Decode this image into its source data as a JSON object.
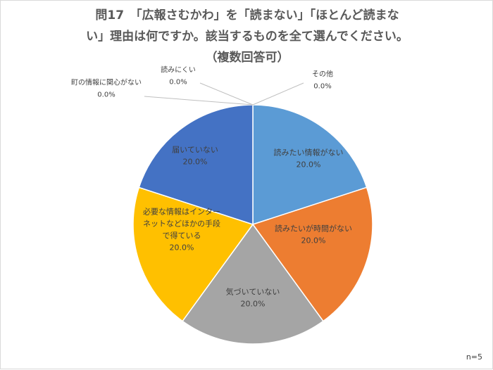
{
  "chart_data": {
    "type": "pie",
    "title_lines": [
      "問17　「広報さむかわ」を「読まない」「ほとんど読まな",
      "い」理由は何ですか。該当するものを全て選んでください。",
      "（複数回答可）"
    ],
    "sample_note": "n=5",
    "slices": [
      {
        "label": "読みたい情報がない",
        "value": 20.0,
        "value_label": "20.0%",
        "color": "#5b9bd5"
      },
      {
        "label": "読みたいが時間がない",
        "value": 20.0,
        "value_label": "20.0%",
        "color": "#ed7d31"
      },
      {
        "label": "気づいていない",
        "value": 20.0,
        "value_label": "20.0%",
        "color": "#a5a5a5"
      },
      {
        "label": "必要な情報はインターネットなどほかの手段で得ている",
        "value": 20.0,
        "value_label": "20.0%",
        "color": "#ffc000"
      },
      {
        "label": "届いていない",
        "value": 20.0,
        "value_label": "20.0%",
        "color": "#4472c4"
      },
      {
        "label": "町の情報に関心がない",
        "value": 0.0,
        "value_label": "0.0%",
        "color": "#70ad47"
      },
      {
        "label": "読みにくい",
        "value": 0.0,
        "value_label": "0.0%",
        "color": "#264478"
      },
      {
        "label": "その他",
        "value": 0.0,
        "value_label": "0.0%",
        "color": "#9e480e"
      }
    ]
  }
}
